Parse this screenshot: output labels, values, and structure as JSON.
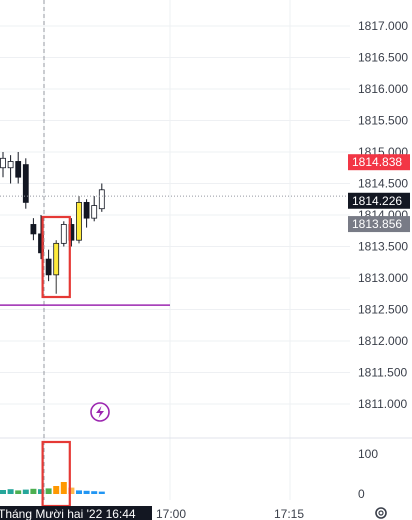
{
  "chart_data": {
    "type": "candlestick",
    "price_axis": {
      "ticks": [
        "1817.000",
        "1816.500",
        "1816.000",
        "1815.500",
        "1815.000",
        "1814.500",
        "1814.000",
        "1813.500",
        "1813.000",
        "1812.500",
        "1812.000",
        "1811.500",
        "1811.000"
      ],
      "ylim": [
        1810.6,
        1817.2
      ]
    },
    "volume_axis": {
      "ticks": [
        "100",
        "0"
      ],
      "ylim": [
        0,
        120
      ]
    },
    "time_axis": {
      "labels": [
        "17:00",
        "17:15"
      ],
      "crosshair_label": "Tháng Mười hai '22   16:44"
    },
    "price_badges": [
      {
        "label": "1814.838",
        "value": 1814.838,
        "bg": "#f23645",
        "fg": "#ffffff"
      },
      {
        "label": "1814.226",
        "value": 1814.226,
        "bg": "#131722",
        "fg": "#ffffff"
      },
      {
        "label": "1813.856",
        "value": 1813.856,
        "bg": "#787b86",
        "fg": "#ffffff"
      }
    ],
    "horizontal_line": {
      "value": 1812.57,
      "color": "#9c27b0"
    },
    "dotted_price_line": 1814.3,
    "candles": [
      {
        "o": 1814.9,
        "h": 1815.0,
        "l": 1814.6,
        "c": 1814.75,
        "color": "white"
      },
      {
        "o": 1814.75,
        "h": 1814.95,
        "l": 1814.5,
        "c": 1814.85,
        "color": "white"
      },
      {
        "o": 1814.85,
        "h": 1815.0,
        "l": 1814.5,
        "c": 1814.6,
        "color": "black"
      },
      {
        "o": 1814.8,
        "h": 1814.9,
        "l": 1814.1,
        "c": 1814.2,
        "color": "black"
      },
      {
        "o": 1813.85,
        "h": 1813.95,
        "l": 1813.6,
        "c": 1813.7,
        "color": "black"
      },
      {
        "o": 1813.7,
        "h": 1814.0,
        "l": 1813.3,
        "c": 1813.4,
        "color": "black"
      },
      {
        "o": 1813.3,
        "h": 1813.45,
        "l": 1812.95,
        "c": 1813.05,
        "color": "black"
      },
      {
        "o": 1813.05,
        "h": 1813.6,
        "l": 1812.75,
        "c": 1813.55,
        "color": "yellow"
      },
      {
        "o": 1813.55,
        "h": 1813.9,
        "l": 1813.5,
        "c": 1813.85,
        "color": "white"
      },
      {
        "o": 1813.85,
        "h": 1813.95,
        "l": 1813.5,
        "c": 1813.6,
        "color": "black"
      },
      {
        "o": 1813.6,
        "h": 1814.3,
        "l": 1813.55,
        "c": 1814.2,
        "color": "yellow"
      },
      {
        "o": 1814.2,
        "h": 1814.25,
        "l": 1813.8,
        "c": 1813.95,
        "color": "black"
      },
      {
        "o": 1813.95,
        "h": 1814.3,
        "l": 1813.9,
        "c": 1814.15,
        "color": "white"
      },
      {
        "o": 1814.1,
        "h": 1814.5,
        "l": 1814.05,
        "c": 1814.4,
        "color": "white"
      }
    ],
    "volumes": [
      {
        "v": 10,
        "color": "#26a69a"
      },
      {
        "v": 12,
        "color": "#26a69a"
      },
      {
        "v": 9,
        "color": "#4caf50"
      },
      {
        "v": 11,
        "color": "#26a69a"
      },
      {
        "v": 13,
        "color": "#4caf50"
      },
      {
        "v": 12,
        "color": "#26a69a"
      },
      {
        "v": 14,
        "color": "#4caf50"
      },
      {
        "v": 20,
        "color": "#ff9800"
      },
      {
        "v": 30,
        "color": "#ff9800"
      },
      {
        "v": 16,
        "color": "#ffb74d"
      },
      {
        "v": 9,
        "color": "#2196f3"
      },
      {
        "v": 8,
        "color": "#2196f3"
      },
      {
        "v": 7,
        "color": "#2196f3"
      },
      {
        "v": 6,
        "color": "#2196f3"
      }
    ],
    "highlight_boxes": [
      "candle",
      "volume"
    ],
    "grid": true
  }
}
